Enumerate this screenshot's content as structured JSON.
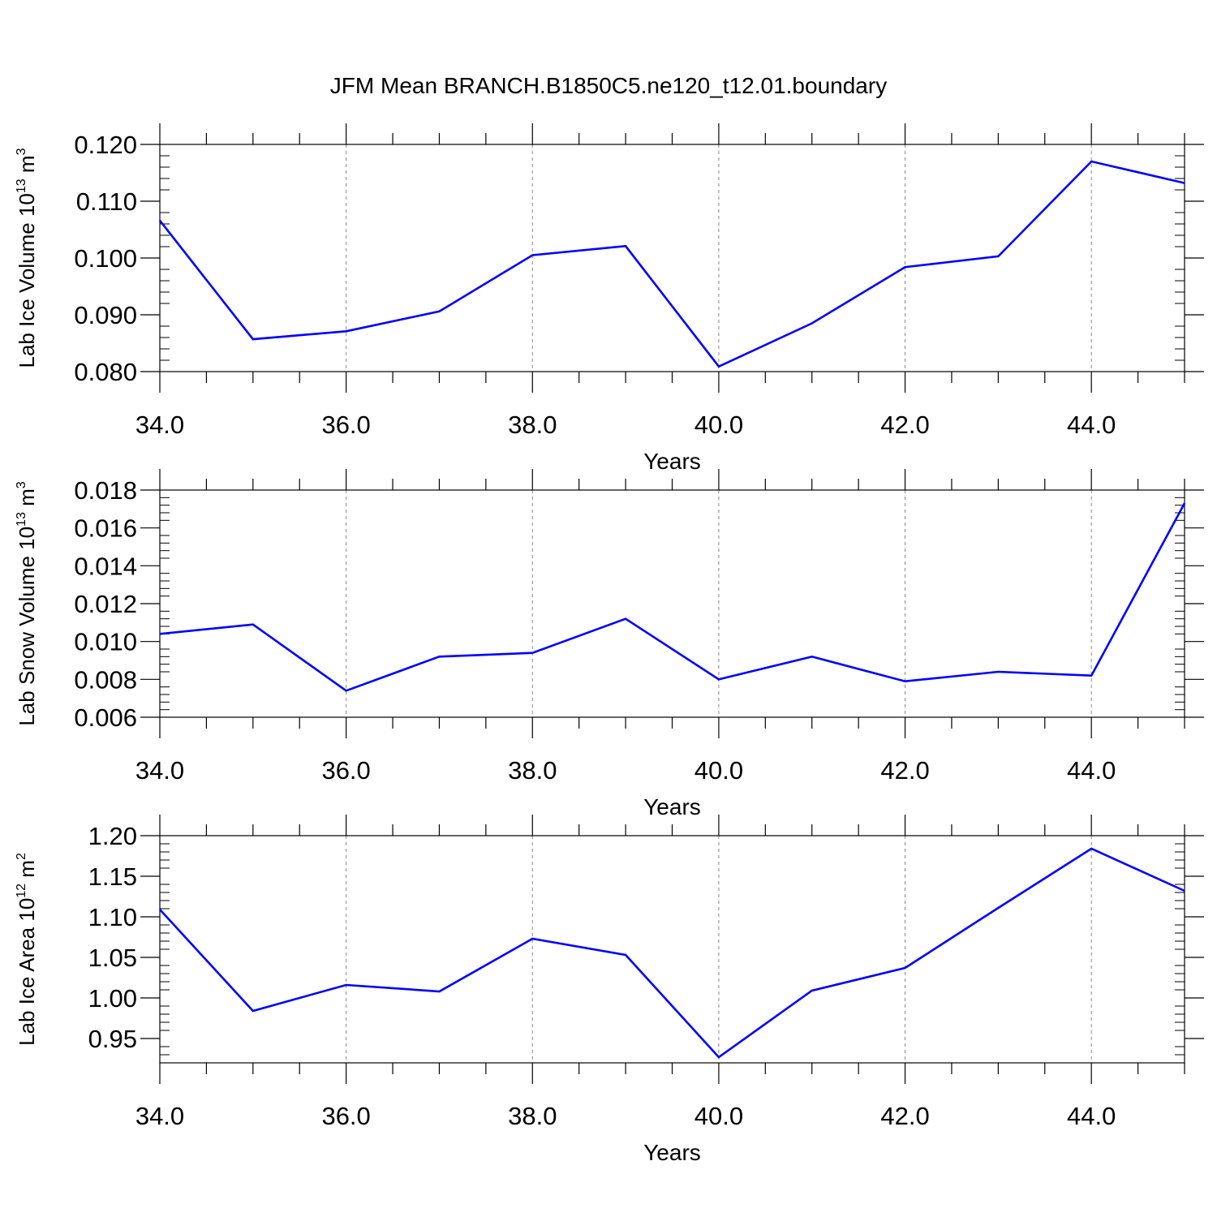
{
  "figure": {
    "title": "JFM Mean BRANCH.B1850C5.ne120_t12.01.boundary",
    "line_color": "#0000ff"
  },
  "chart_data": [
    {
      "type": "line",
      "title": "",
      "xlabel": "Years",
      "ylabel": "Lab Ice Volume 10",
      "ylabel_sup1": "13",
      "ylabel_mid": " m",
      "ylabel_sup2": "3",
      "xlim": [
        34,
        45
      ],
      "ylim": [
        0.08,
        0.12
      ],
      "xticks": [
        34,
        36,
        38,
        40,
        42,
        44
      ],
      "xtick_labels": [
        "34.0",
        "36.0",
        "38.0",
        "40.0",
        "42.0",
        "44.0"
      ],
      "yticks": [
        0.08,
        0.09,
        0.1,
        0.11,
        0.12
      ],
      "ytick_labels": [
        "0.080",
        "0.090",
        "0.100",
        "0.110",
        "0.120"
      ],
      "grid": "vertical dashed at major x ticks",
      "series": [
        {
          "x": [
            34,
            35,
            36,
            37,
            38,
            39,
            40,
            41,
            42,
            43,
            44,
            45
          ],
          "values": [
            0.1066,
            0.0857,
            0.0871,
            0.0906,
            0.1005,
            0.1021,
            0.0809,
            0.0885,
            0.0984,
            0.1003,
            0.117,
            0.1132
          ]
        }
      ]
    },
    {
      "type": "line",
      "title": "",
      "xlabel": "Years",
      "ylabel": "Lab Snow Volume 10",
      "ylabel_sup1": "13",
      "ylabel_mid": " m",
      "ylabel_sup2": "3",
      "xlim": [
        34,
        45
      ],
      "ylim": [
        0.006,
        0.018
      ],
      "xticks": [
        34,
        36,
        38,
        40,
        42,
        44
      ],
      "xtick_labels": [
        "34.0",
        "36.0",
        "38.0",
        "40.0",
        "42.0",
        "44.0"
      ],
      "yticks": [
        0.006,
        0.008,
        0.01,
        0.012,
        0.014,
        0.016,
        0.018
      ],
      "ytick_labels": [
        "0.006",
        "0.008",
        "0.010",
        "0.012",
        "0.014",
        "0.016",
        "0.018"
      ],
      "grid": "vertical dashed at major x ticks",
      "series": [
        {
          "x": [
            34,
            35,
            36,
            37,
            38,
            39,
            40,
            41,
            42,
            43,
            44,
            45
          ],
          "values": [
            0.0104,
            0.0109,
            0.0074,
            0.0092,
            0.0094,
            0.0112,
            0.008,
            0.0092,
            0.0079,
            0.0084,
            0.0082,
            0.0173
          ]
        }
      ]
    },
    {
      "type": "line",
      "title": "",
      "xlabel": "Years",
      "ylabel": "Lab Ice Area 10",
      "ylabel_sup1": "12",
      "ylabel_mid": " m",
      "ylabel_sup2": "2",
      "xlim": [
        34,
        45
      ],
      "ylim": [
        0.92,
        1.2
      ],
      "xticks": [
        34,
        36,
        38,
        40,
        42,
        44
      ],
      "xtick_labels": [
        "34.0",
        "36.0",
        "38.0",
        "40.0",
        "42.0",
        "44.0"
      ],
      "yticks": [
        0.95,
        1.0,
        1.05,
        1.1,
        1.15,
        1.2
      ],
      "ytick_labels": [
        "0.95",
        "1.00",
        "1.05",
        "1.10",
        "1.15",
        "1.20"
      ],
      "grid": "vertical dashed at major x ticks",
      "series": [
        {
          "x": [
            34,
            35,
            36,
            37,
            38,
            39,
            40,
            41,
            42,
            43,
            44,
            45
          ],
          "values": [
            1.109,
            0.984,
            1.016,
            1.008,
            1.073,
            1.053,
            0.927,
            1.009,
            1.037,
            1.111,
            1.184,
            1.132
          ]
        }
      ]
    }
  ]
}
